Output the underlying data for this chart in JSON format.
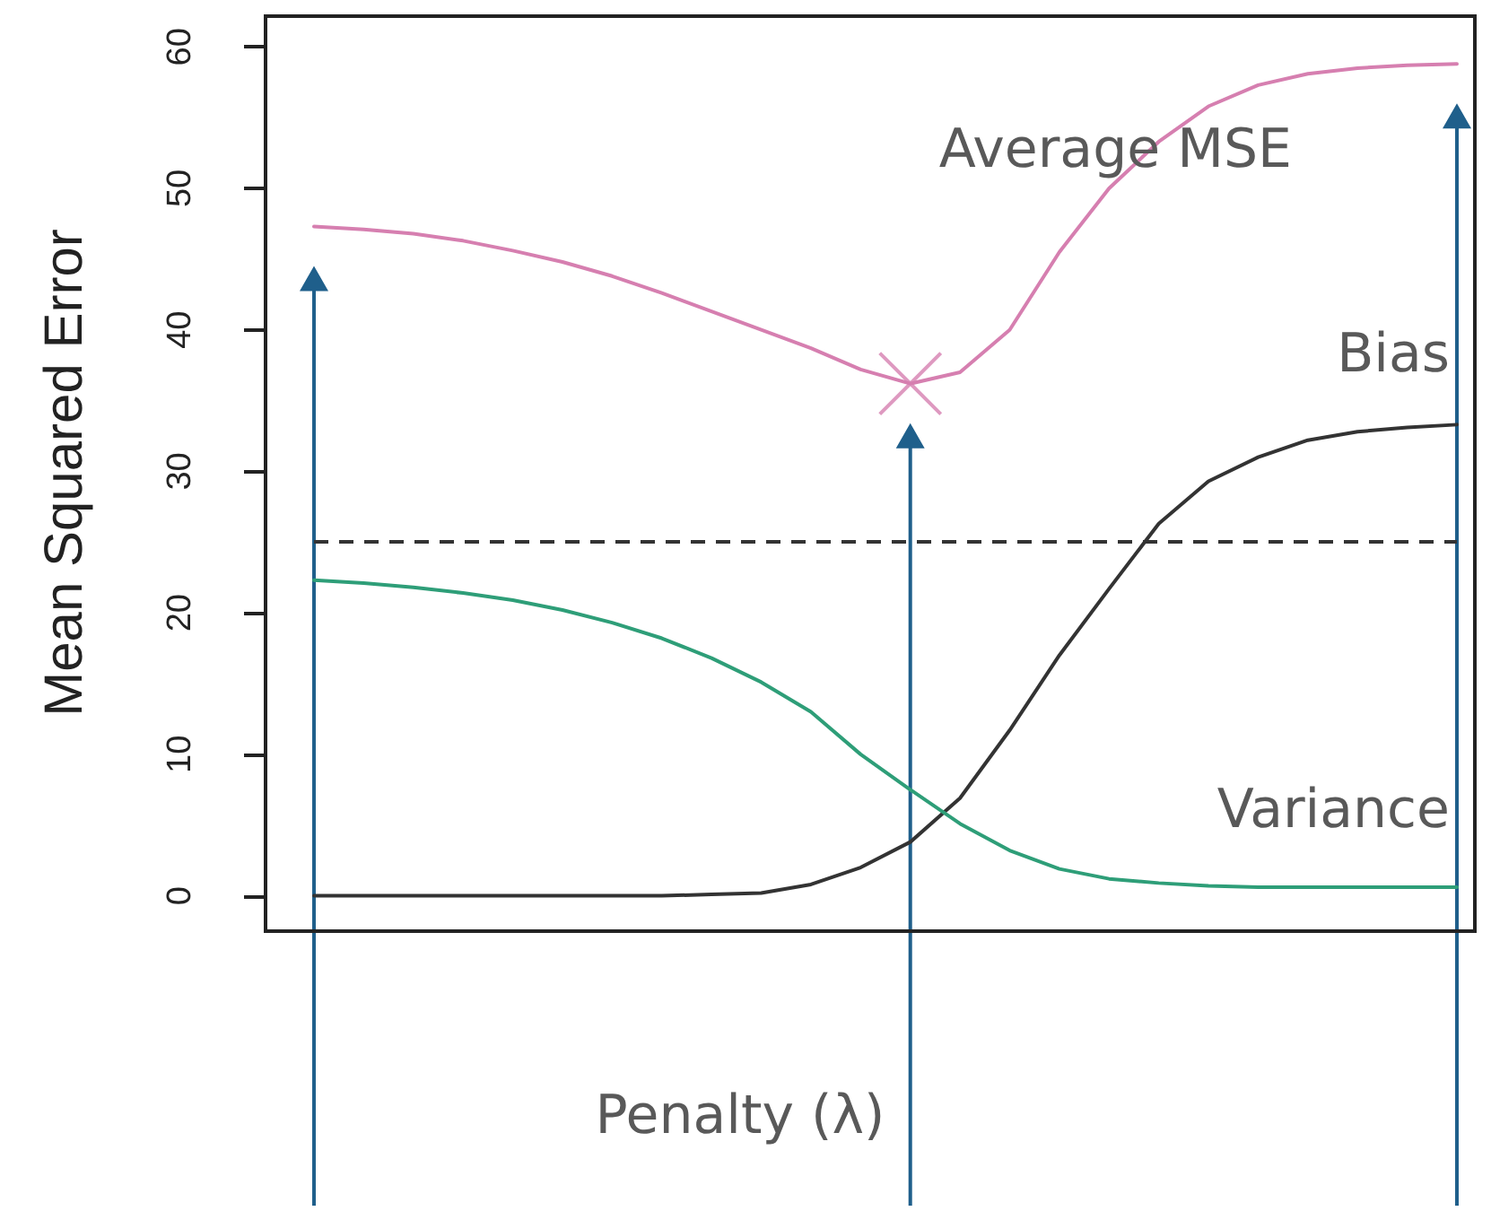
{
  "chart_data": {
    "type": "line",
    "xlabel": "Penalty (λ)",
    "ylabel": "Mean Squared Error",
    "categories": [
      null,
      null,
      null,
      null,
      null,
      null,
      null,
      null,
      null,
      null,
      null,
      null,
      null,
      null,
      null,
      null,
      null,
      null,
      null,
      null,
      null,
      null,
      null,
      null
    ],
    "series": [
      {
        "name": "Average MSE",
        "color": "#d67fb0",
        "values": [
          47.3,
          47.1,
          46.8,
          46.3,
          45.6,
          44.8,
          43.8,
          42.6,
          41.3,
          40.0,
          38.7,
          37.2,
          36.2,
          37.0,
          40.0,
          45.5,
          50.0,
          53.3,
          55.8,
          57.3,
          58.1,
          58.5,
          58.7,
          58.8
        ]
      },
      {
        "type": "scatter",
        "marker": "cross",
        "color": "#d67fb0",
        "values": [
          null,
          null,
          null,
          null,
          null,
          null,
          null,
          null,
          null,
          null,
          null,
          null,
          36.2,
          null,
          null,
          null,
          null,
          null,
          null,
          null,
          null,
          null,
          null,
          null
        ]
      },
      {
        "name": "Bias",
        "color": "#333333",
        "values": [
          0,
          0,
          0,
          0,
          0,
          0,
          0,
          0,
          0.1,
          0.2,
          0.8,
          2.0,
          3.8,
          6.9,
          11.7,
          17.0,
          21.7,
          26.3,
          29.3,
          31.0,
          32.2,
          32.8,
          33.1,
          33.3
        ]
      },
      {
        "name": "Variance",
        "color": "#2e9e78",
        "values": [
          22.3,
          22.1,
          21.8,
          21.4,
          20.9,
          20.2,
          19.3,
          18.2,
          16.8,
          15.1,
          13.0,
          10.0,
          7.5,
          5.1,
          3.2,
          1.9,
          1.2,
          0.9,
          0.7,
          0.6,
          0.6,
          0.6,
          0.6,
          0.6
        ]
      }
    ],
    "ref_lines": [
      {
        "axis": "y",
        "value": 25,
        "color": "#333333",
        "line_style": "dashed"
      }
    ],
    "ylim": [
      -2.5,
      62.3
    ],
    "yticks": [
      0,
      10,
      20,
      30,
      40,
      50,
      60
    ],
    "tick_labels": "y",
    "marker": "none",
    "line_style": "solid"
  }
}
